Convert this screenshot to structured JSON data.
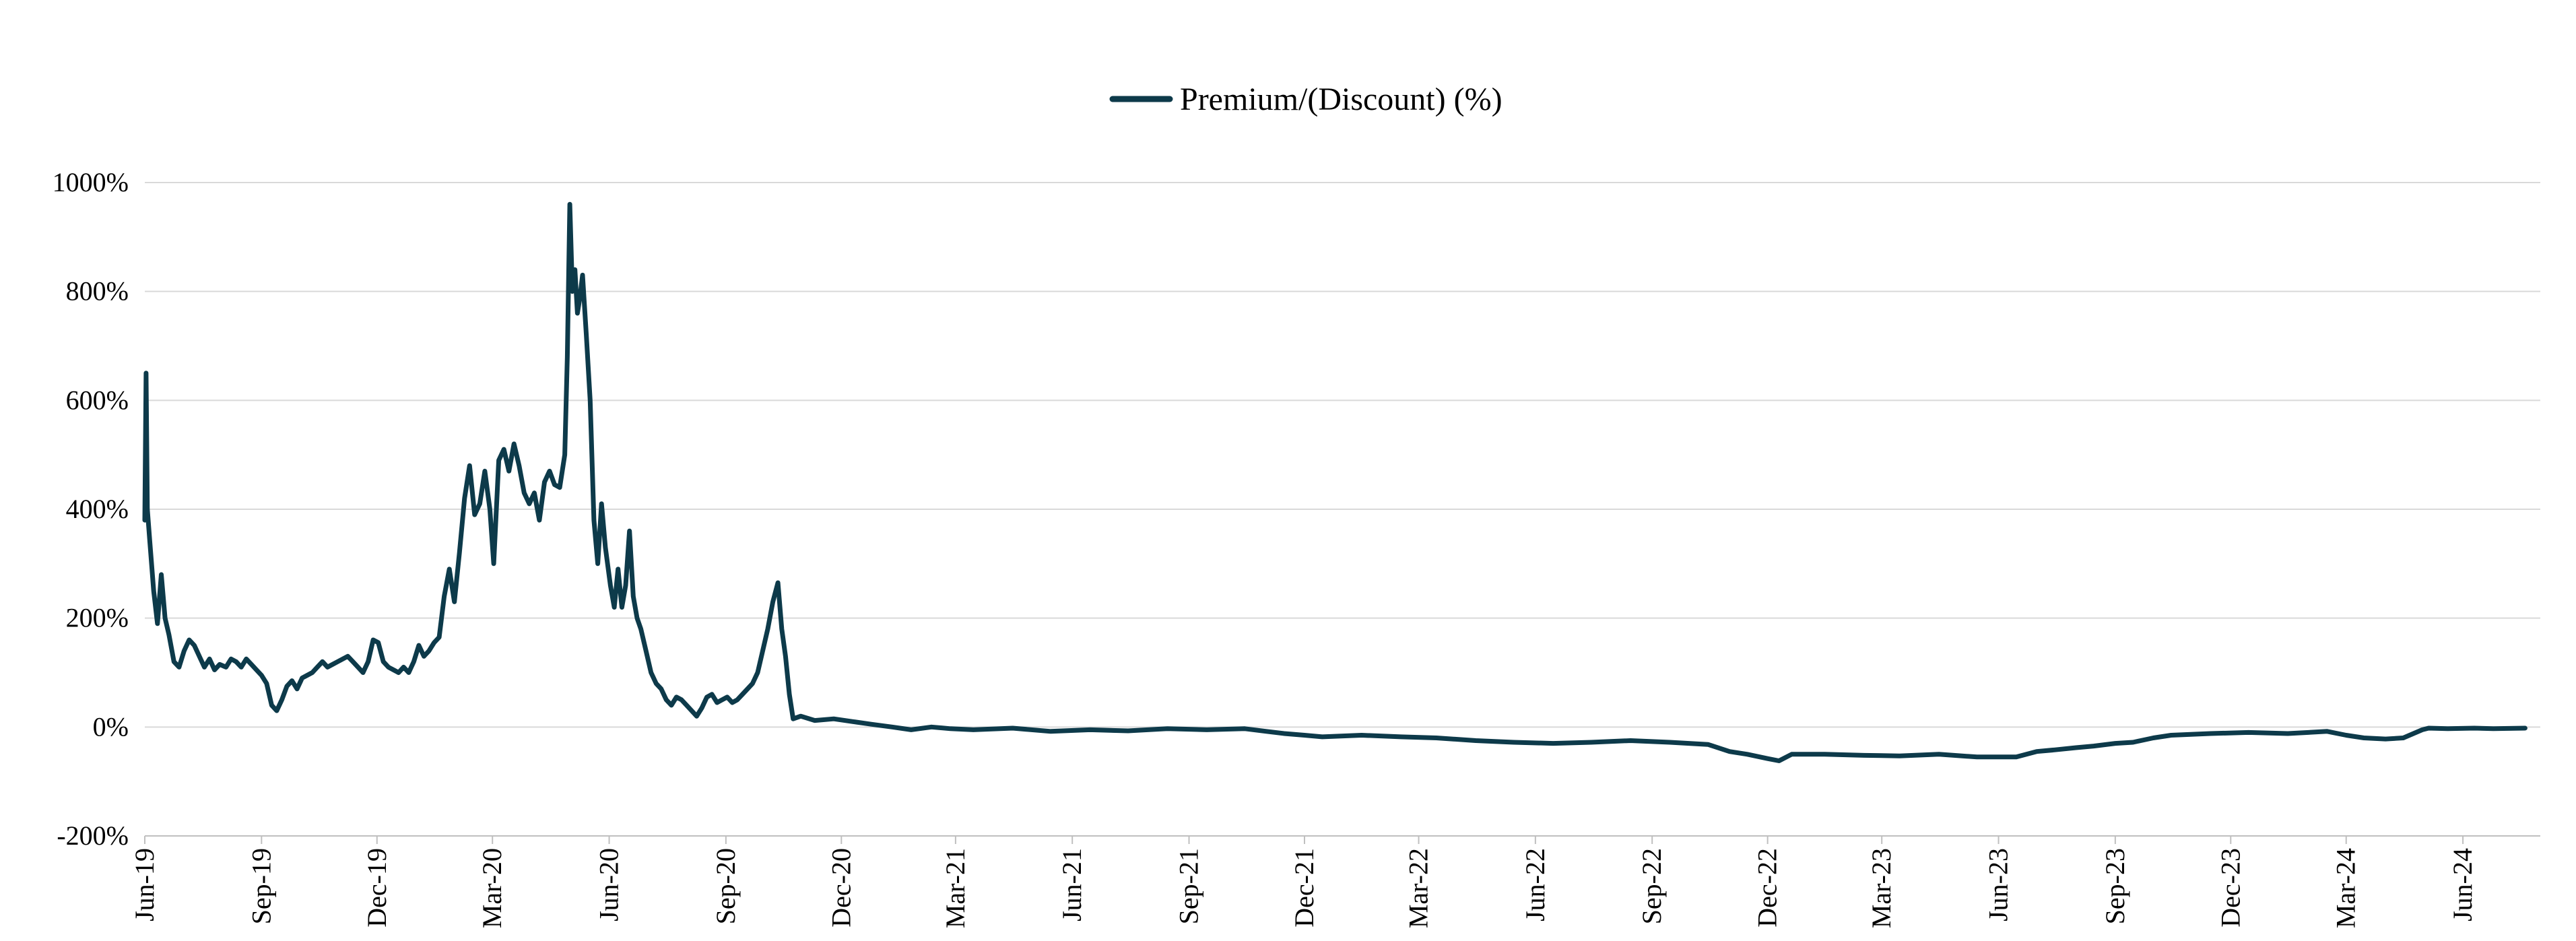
{
  "chart_data": {
    "type": "line",
    "title": "",
    "xlabel": "",
    "ylabel": "",
    "legend_position": "top-center",
    "grid": true,
    "ylim": [
      -200,
      1000
    ],
    "xlim": [
      "2019-06-01",
      "2024-08-01"
    ],
    "y_ticks": [
      {
        "value": -200,
        "label": "-200%"
      },
      {
        "value": 0,
        "label": "0%"
      },
      {
        "value": 200,
        "label": "200%"
      },
      {
        "value": 400,
        "label": "400%"
      },
      {
        "value": 600,
        "label": "600%"
      },
      {
        "value": 800,
        "label": "800%"
      },
      {
        "value": 1000,
        "label": "1000%"
      }
    ],
    "x_ticks": [
      {
        "date": "2019-06-01",
        "label": "Jun-19"
      },
      {
        "date": "2019-09-01",
        "label": "Sep-19"
      },
      {
        "date": "2019-12-01",
        "label": "Dec-19"
      },
      {
        "date": "2020-03-01",
        "label": "Mar-20"
      },
      {
        "date": "2020-06-01",
        "label": "Jun-20"
      },
      {
        "date": "2020-09-01",
        "label": "Sep-20"
      },
      {
        "date": "2020-12-01",
        "label": "Dec-20"
      },
      {
        "date": "2021-03-01",
        "label": "Mar-21"
      },
      {
        "date": "2021-06-01",
        "label": "Jun-21"
      },
      {
        "date": "2021-09-01",
        "label": "Sep-21"
      },
      {
        "date": "2021-12-01",
        "label": "Dec-21"
      },
      {
        "date": "2022-03-01",
        "label": "Mar-22"
      },
      {
        "date": "2022-06-01",
        "label": "Jun-22"
      },
      {
        "date": "2022-09-01",
        "label": "Sep-22"
      },
      {
        "date": "2022-12-01",
        "label": "Dec-22"
      },
      {
        "date": "2023-03-01",
        "label": "Mar-23"
      },
      {
        "date": "2023-06-01",
        "label": "Jun-23"
      },
      {
        "date": "2023-09-01",
        "label": "Sep-23"
      },
      {
        "date": "2023-12-01",
        "label": "Dec-23"
      },
      {
        "date": "2024-03-01",
        "label": "Mar-24"
      },
      {
        "date": "2024-06-01",
        "label": "Jun-24"
      }
    ],
    "series": [
      {
        "name": "Premium/(Discount) (%)",
        "color": "#0d3a4a",
        "points": [
          [
            "2019-06-01",
            380
          ],
          [
            "2019-06-02",
            650
          ],
          [
            "2019-06-03",
            400
          ],
          [
            "2019-06-05",
            340
          ],
          [
            "2019-06-08",
            250
          ],
          [
            "2019-06-11",
            190
          ],
          [
            "2019-06-14",
            280
          ],
          [
            "2019-06-17",
            200
          ],
          [
            "2019-06-20",
            170
          ],
          [
            "2019-06-24",
            120
          ],
          [
            "2019-06-28",
            110
          ],
          [
            "2019-07-02",
            140
          ],
          [
            "2019-07-06",
            160
          ],
          [
            "2019-07-10",
            150
          ],
          [
            "2019-07-14",
            130
          ],
          [
            "2019-07-18",
            110
          ],
          [
            "2019-07-22",
            125
          ],
          [
            "2019-07-26",
            105
          ],
          [
            "2019-07-30",
            115
          ],
          [
            "2019-08-04",
            110
          ],
          [
            "2019-08-08",
            125
          ],
          [
            "2019-08-12",
            120
          ],
          [
            "2019-08-16",
            110
          ],
          [
            "2019-08-20",
            125
          ],
          [
            "2019-08-24",
            115
          ],
          [
            "2019-08-28",
            105
          ],
          [
            "2019-09-01",
            95
          ],
          [
            "2019-09-05",
            80
          ],
          [
            "2019-09-09",
            40
          ],
          [
            "2019-09-13",
            30
          ],
          [
            "2019-09-17",
            50
          ],
          [
            "2019-09-21",
            75
          ],
          [
            "2019-09-25",
            85
          ],
          [
            "2019-09-29",
            70
          ],
          [
            "2019-10-03",
            90
          ],
          [
            "2019-10-07",
            95
          ],
          [
            "2019-10-11",
            100
          ],
          [
            "2019-10-15",
            110
          ],
          [
            "2019-10-19",
            120
          ],
          [
            "2019-10-23",
            110
          ],
          [
            "2019-10-27",
            115
          ],
          [
            "2019-10-31",
            120
          ],
          [
            "2019-11-04",
            125
          ],
          [
            "2019-11-08",
            130
          ],
          [
            "2019-11-12",
            120
          ],
          [
            "2019-11-16",
            110
          ],
          [
            "2019-11-20",
            100
          ],
          [
            "2019-11-24",
            120
          ],
          [
            "2019-11-28",
            160
          ],
          [
            "2019-12-02",
            155
          ],
          [
            "2019-12-06",
            120
          ],
          [
            "2019-12-10",
            110
          ],
          [
            "2019-12-14",
            105
          ],
          [
            "2019-12-18",
            100
          ],
          [
            "2019-12-22",
            110
          ],
          [
            "2019-12-26",
            100
          ],
          [
            "2019-12-30",
            120
          ],
          [
            "2020-01-03",
            150
          ],
          [
            "2020-01-07",
            130
          ],
          [
            "2020-01-11",
            140
          ],
          [
            "2020-01-15",
            155
          ],
          [
            "2020-01-19",
            165
          ],
          [
            "2020-01-23",
            240
          ],
          [
            "2020-01-27",
            290
          ],
          [
            "2020-01-31",
            230
          ],
          [
            "2020-02-04",
            320
          ],
          [
            "2020-02-08",
            420
          ],
          [
            "2020-02-12",
            480
          ],
          [
            "2020-02-16",
            390
          ],
          [
            "2020-02-20",
            410
          ],
          [
            "2020-02-24",
            470
          ],
          [
            "2020-02-28",
            400
          ],
          [
            "2020-03-02",
            300
          ],
          [
            "2020-03-06",
            490
          ],
          [
            "2020-03-10",
            510
          ],
          [
            "2020-03-14",
            470
          ],
          [
            "2020-03-18",
            520
          ],
          [
            "2020-03-22",
            480
          ],
          [
            "2020-03-26",
            430
          ],
          [
            "2020-03-30",
            410
          ],
          [
            "2020-04-03",
            430
          ],
          [
            "2020-04-07",
            380
          ],
          [
            "2020-04-11",
            450
          ],
          [
            "2020-04-15",
            470
          ],
          [
            "2020-04-19",
            445
          ],
          [
            "2020-04-23",
            440
          ],
          [
            "2020-04-27",
            500
          ],
          [
            "2020-04-29",
            680
          ],
          [
            "2020-05-01",
            960
          ],
          [
            "2020-05-03",
            800
          ],
          [
            "2020-05-05",
            840
          ],
          [
            "2020-05-07",
            760
          ],
          [
            "2020-05-09",
            790
          ],
          [
            "2020-05-11",
            830
          ],
          [
            "2020-05-14",
            720
          ],
          [
            "2020-05-17",
            600
          ],
          [
            "2020-05-20",
            380
          ],
          [
            "2020-05-23",
            300
          ],
          [
            "2020-05-26",
            410
          ],
          [
            "2020-05-29",
            330
          ],
          [
            "2020-06-02",
            260
          ],
          [
            "2020-06-05",
            220
          ],
          [
            "2020-06-08",
            290
          ],
          [
            "2020-06-11",
            220
          ],
          [
            "2020-06-14",
            260
          ],
          [
            "2020-06-17",
            360
          ],
          [
            "2020-06-20",
            240
          ],
          [
            "2020-06-23",
            200
          ],
          [
            "2020-06-26",
            180
          ],
          [
            "2020-06-30",
            140
          ],
          [
            "2020-07-04",
            100
          ],
          [
            "2020-07-08",
            80
          ],
          [
            "2020-07-12",
            70
          ],
          [
            "2020-07-16",
            50
          ],
          [
            "2020-07-20",
            40
          ],
          [
            "2020-07-24",
            55
          ],
          [
            "2020-07-28",
            50
          ],
          [
            "2020-08-01",
            40
          ],
          [
            "2020-08-05",
            30
          ],
          [
            "2020-08-09",
            20
          ],
          [
            "2020-08-13",
            35
          ],
          [
            "2020-08-17",
            55
          ],
          [
            "2020-08-21",
            60
          ],
          [
            "2020-08-25",
            45
          ],
          [
            "2020-08-29",
            50
          ],
          [
            "2020-09-02",
            55
          ],
          [
            "2020-09-06",
            45
          ],
          [
            "2020-09-10",
            50
          ],
          [
            "2020-09-14",
            60
          ],
          [
            "2020-09-18",
            70
          ],
          [
            "2020-09-22",
            80
          ],
          [
            "2020-09-26",
            100
          ],
          [
            "2020-09-30",
            140
          ],
          [
            "2020-10-04",
            180
          ],
          [
            "2020-10-08",
            230
          ],
          [
            "2020-10-12",
            265
          ],
          [
            "2020-10-15",
            180
          ],
          [
            "2020-10-18",
            130
          ],
          [
            "2020-10-21",
            60
          ],
          [
            "2020-10-24",
            15
          ],
          [
            "2020-10-30",
            20
          ],
          [
            "2020-11-10",
            12
          ],
          [
            "2020-11-25",
            15
          ],
          [
            "2020-12-10",
            10
          ],
          [
            "2020-12-25",
            5
          ],
          [
            "2021-01-10",
            0
          ],
          [
            "2021-01-25",
            -5
          ],
          [
            "2021-02-10",
            0
          ],
          [
            "2021-02-25",
            -3
          ],
          [
            "2021-03-15",
            -5
          ],
          [
            "2021-04-15",
            -2
          ],
          [
            "2021-05-15",
            -8
          ],
          [
            "2021-06-15",
            -5
          ],
          [
            "2021-07-15",
            -7
          ],
          [
            "2021-08-15",
            -3
          ],
          [
            "2021-09-15",
            -5
          ],
          [
            "2021-10-15",
            -3
          ],
          [
            "2021-11-01",
            -8
          ],
          [
            "2021-11-15",
            -12
          ],
          [
            "2021-12-01",
            -15
          ],
          [
            "2021-12-15",
            -18
          ],
          [
            "2022-01-15",
            -15
          ],
          [
            "2022-02-15",
            -18
          ],
          [
            "2022-03-15",
            -20
          ],
          [
            "2022-04-15",
            -25
          ],
          [
            "2022-05-15",
            -28
          ],
          [
            "2022-06-15",
            -30
          ],
          [
            "2022-07-15",
            -28
          ],
          [
            "2022-08-15",
            -25
          ],
          [
            "2022-09-15",
            -28
          ],
          [
            "2022-10-15",
            -32
          ],
          [
            "2022-11-01",
            -45
          ],
          [
            "2022-11-15",
            -50
          ],
          [
            "2022-12-01",
            -58
          ],
          [
            "2022-12-10",
            -62
          ],
          [
            "2022-12-20",
            -50
          ],
          [
            "2023-01-15",
            -50
          ],
          [
            "2023-02-15",
            -52
          ],
          [
            "2023-03-15",
            -53
          ],
          [
            "2023-04-15",
            -50
          ],
          [
            "2023-05-15",
            -55
          ],
          [
            "2023-06-15",
            -55
          ],
          [
            "2023-07-01",
            -45
          ],
          [
            "2023-07-15",
            -42
          ],
          [
            "2023-08-01",
            -38
          ],
          [
            "2023-08-15",
            -35
          ],
          [
            "2023-09-01",
            -30
          ],
          [
            "2023-09-15",
            -28
          ],
          [
            "2023-10-01",
            -20
          ],
          [
            "2023-10-15",
            -15
          ],
          [
            "2023-11-15",
            -12
          ],
          [
            "2023-12-15",
            -10
          ],
          [
            "2024-01-15",
            -12
          ],
          [
            "2024-02-15",
            -8
          ],
          [
            "2024-03-01",
            -15
          ],
          [
            "2024-03-15",
            -20
          ],
          [
            "2024-04-01",
            -22
          ],
          [
            "2024-04-15",
            -20
          ],
          [
            "2024-04-30",
            -5
          ],
          [
            "2024-05-05",
            -2
          ],
          [
            "2024-05-20",
            -3
          ],
          [
            "2024-06-10",
            -2
          ],
          [
            "2024-06-25",
            -3
          ],
          [
            "2024-07-20",
            -2
          ]
        ]
      }
    ]
  }
}
